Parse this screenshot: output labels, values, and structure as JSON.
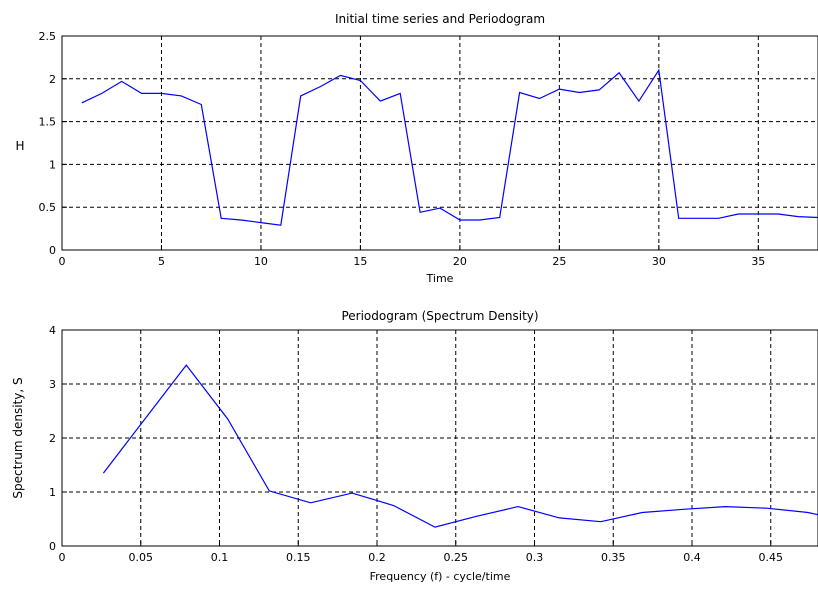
{
  "chart_data": [
    {
      "type": "line",
      "title": "Initial time series   and Periodogram",
      "xlabel": "Time",
      "ylabel": "H",
      "xlim": [
        0,
        38
      ],
      "ylim": [
        0,
        2.5
      ],
      "grid": true,
      "x_ticks": [
        0,
        5,
        10,
        15,
        20,
        25,
        30,
        35
      ],
      "x_tick_labels": [
        "0",
        "5",
        "10",
        "15",
        "20",
        "25",
        "30",
        "35"
      ],
      "y_ticks": [
        0,
        0.5,
        1,
        1.5,
        2,
        2.5
      ],
      "y_tick_labels": [
        "0",
        "0.5",
        "1",
        "1.5",
        "2",
        "2.5"
      ],
      "color": "#0000ff",
      "series": [
        {
          "x": [
            1,
            2,
            3,
            4,
            5,
            6,
            7,
            8,
            9,
            10,
            11,
            12,
            13,
            14,
            15,
            16,
            17,
            18,
            19,
            20,
            21,
            22,
            23,
            24,
            25,
            26,
            27,
            28,
            29,
            30,
            31,
            32,
            33,
            34,
            35,
            36,
            37,
            38
          ],
          "y": [
            1.72,
            1.83,
            1.97,
            1.83,
            1.83,
            1.8,
            1.7,
            0.37,
            0.35,
            0.32,
            0.29,
            1.8,
            1.91,
            2.04,
            1.98,
            1.74,
            1.83,
            0.44,
            0.49,
            0.35,
            0.35,
            0.38,
            1.84,
            1.77,
            1.88,
            1.84,
            1.87,
            2.07,
            1.74,
            2.1,
            0.37,
            0.37,
            0.37,
            0.42,
            0.42,
            0.42,
            0.39,
            0.38
          ]
        }
      ]
    },
    {
      "type": "line",
      "title": "Periodogram (Spectrum Density)",
      "xlabel": "Frequency (f) - cycle/time",
      "ylabel": "Spectrum density, S",
      "xlim": [
        0,
        0.48
      ],
      "ylim": [
        0,
        4
      ],
      "grid": true,
      "x_ticks": [
        0,
        0.05,
        0.1,
        0.15,
        0.2,
        0.25,
        0.3,
        0.35,
        0.4,
        0.45
      ],
      "x_tick_labels": [
        "0",
        "0.05",
        "0.1",
        "0.15",
        "0.2",
        "0.25",
        "0.3",
        "0.35",
        "0.4",
        "0.45"
      ],
      "y_ticks": [
        0,
        1,
        2,
        3,
        4
      ],
      "y_tick_labels": [
        "0",
        "1",
        "2",
        "3",
        "4"
      ],
      "color": "#0000ff",
      "series": [
        {
          "x": [
            0.0263,
            0.0526,
            0.0789,
            0.1053,
            0.1316,
            0.1579,
            0.1842,
            0.2105,
            0.2368,
            0.2632,
            0.2895,
            0.3158,
            0.3421,
            0.3684,
            0.3947,
            0.4211,
            0.4474,
            0.4737,
            0.48
          ],
          "y": [
            1.35,
            2.35,
            3.35,
            2.35,
            1.02,
            0.8,
            0.98,
            0.75,
            0.35,
            0.55,
            0.73,
            0.52,
            0.45,
            0.62,
            0.68,
            0.73,
            0.7,
            0.62,
            0.58
          ]
        }
      ]
    }
  ]
}
